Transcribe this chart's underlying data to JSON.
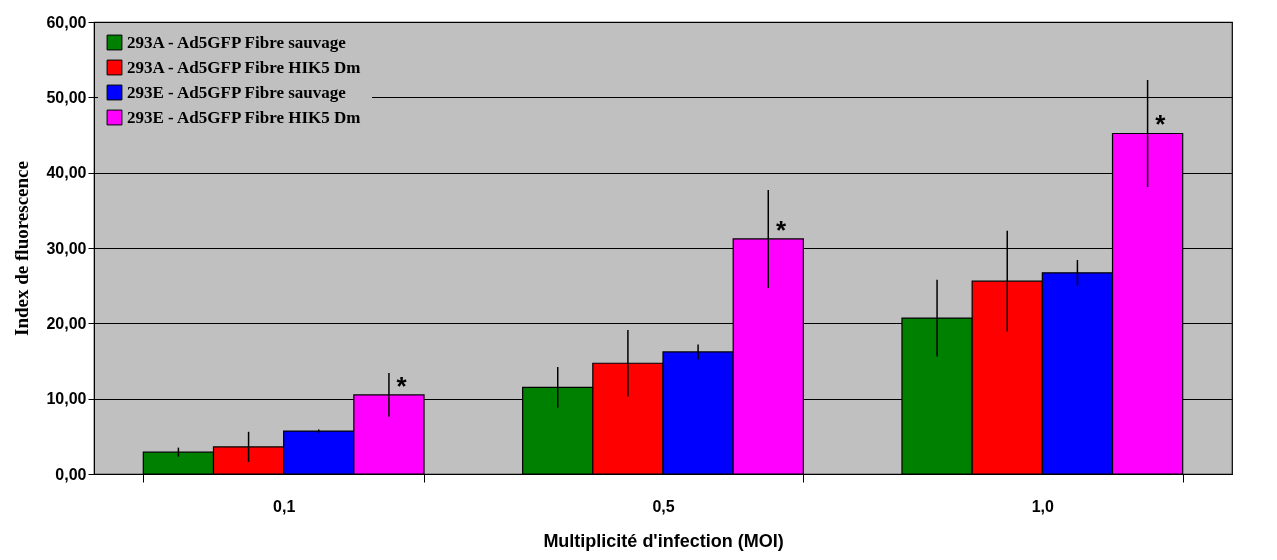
{
  "chart_data": {
    "type": "bar",
    "xlabel": "Multiplicité d'infection (MOI)",
    "ylabel": "Index de fluorescence",
    "categories": [
      "0,1",
      "0,5",
      "1,0"
    ],
    "series": [
      {
        "name": "293A - Ad5GFP Fibre sauvage",
        "color": "#008000",
        "values": [
          2.9,
          11.5,
          20.7
        ],
        "errors": [
          0.6,
          2.7,
          5.1
        ]
      },
      {
        "name": "293A - Ad5GFP Fibre HIK5 Dm",
        "color": "#ff0000",
        "values": [
          3.6,
          14.7,
          25.6
        ],
        "errors": [
          2.0,
          4.4,
          6.7
        ]
      },
      {
        "name": "293E - Ad5GFP Fibre sauvage",
        "color": "#0000ff",
        "values": [
          5.7,
          16.2,
          26.7
        ],
        "errors": [
          0.2,
          1.0,
          1.7
        ]
      },
      {
        "name": "293E - Ad5GFP Fibre HIK5 Dm",
        "color": "#ff00ff",
        "values": [
          10.5,
          31.2,
          45.2
        ],
        "errors": [
          2.9,
          6.5,
          7.1
        ]
      }
    ],
    "ylim": [
      0,
      60
    ],
    "yticks": [
      {
        "value": 0,
        "label": "0,00"
      },
      {
        "value": 10,
        "label": "10,00"
      },
      {
        "value": 20,
        "label": "20,00"
      },
      {
        "value": 30,
        "label": "30,00"
      },
      {
        "value": 40,
        "label": "40,00"
      },
      {
        "value": 50,
        "label": "50,00"
      },
      {
        "value": 60,
        "label": "60,00"
      }
    ],
    "grid": "y",
    "legend": "top left",
    "annotations": [
      "*",
      "*",
      "*"
    ]
  }
}
